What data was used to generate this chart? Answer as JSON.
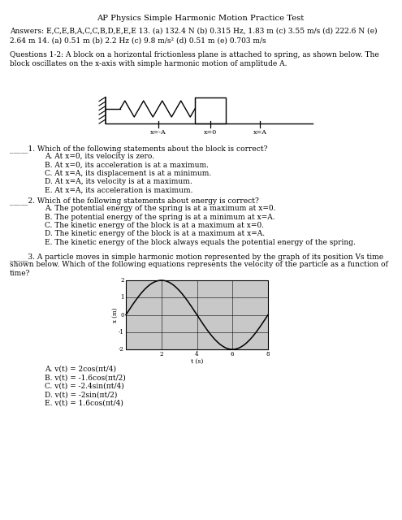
{
  "title": "AP Physics Simple Harmonic Motion Practice Test",
  "answers_line1": "Answers: E,C,E,B,A,C,C,B,D,E,E,E 13. (a) 132.4 N (b) 0.315 Hz, 1.83 m (c) 3.55 m/s (d) 222.6 N (e)",
  "answers_line2": "2.64 m 14. (a) 0.51 m (b) 2.2 Hz (c) 9.8 m/s² (d) 0.51 m (e) 0.703 m/s",
  "q12_intro_1": "Questions 1-2: A block on a horizontal frictionless plane is attached to spring, as shown below. The",
  "q12_intro_2": "block oscillates on the x-axis with simple harmonic motion of amplitude A.",
  "q1_text": "_____1. Which of the following statements about the block is correct?",
  "q1_choices": [
    "A. At x=0, its velocity is zero.",
    "B. At x=0, its acceleration is at a maximum.",
    "C. At x=A, its displacement is at a minimum.",
    "D. At x=A, its velocity is at a maximum.",
    "E. At x=A, its acceleration is maximum."
  ],
  "q2_text": "_____2. Which of the following statements about energy is correct?",
  "q2_choices": [
    "A. The potential energy of the spring is at a maximum at x=0.",
    "B. The potential energy of the spring is at a minimum at x=A.",
    "C. The kinetic energy of the block is at a maximum at x=0.",
    "D. The kinetic energy of the block is at a maximum at x=A.",
    "E. The kinetic energy of the block always equals the potential energy of the spring."
  ],
  "q3_line1": "_____3. A particle moves in simple harmonic motion represented by the graph of its position Vs time",
  "q3_line2": "shown below. Which of the following equations represents the velocity of the particle as a function of",
  "q3_line3": "time?",
  "q3_choices": [
    "A. v(t) = 2cos(πt/4)",
    "B. v(t) = -1.6cos(πt/2)",
    "C. v(t) = -2.4sin(πt/4)",
    "D. v(t) = -2sin(πt/2)",
    "E. v(t) = 1.6cos(πt/4)"
  ],
  "bg_color": "#ffffff",
  "text_color": "#000000"
}
